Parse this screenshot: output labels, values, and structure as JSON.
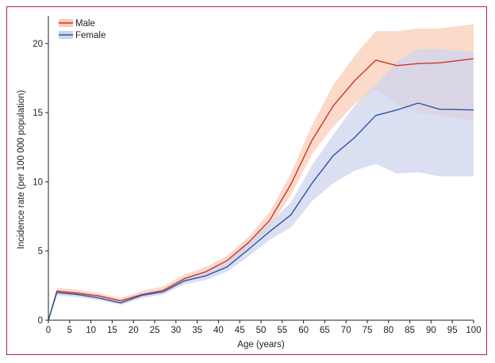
{
  "colors": {
    "male_line": "#d0332e",
    "male_band": "#f9cdb8",
    "female_line": "#2b56a4",
    "female_band": "#cfd4ee",
    "axis": "#222222",
    "frame": "#b01f5b"
  },
  "chart_data": {
    "type": "line",
    "title": "",
    "xlabel": "Age (years)",
    "ylabel": "Incidence rate (per 100 000 population)",
    "xlim": [
      0,
      100
    ],
    "ylim": [
      0,
      22
    ],
    "xticks": [
      0,
      5,
      10,
      15,
      20,
      25,
      30,
      35,
      40,
      45,
      50,
      55,
      60,
      65,
      70,
      75,
      80,
      85,
      90,
      95,
      100
    ],
    "yticks": [
      0,
      5,
      10,
      15,
      20
    ],
    "grid": false,
    "legend_position": "top-left",
    "x": [
      0,
      2,
      7,
      12,
      17,
      22,
      27,
      32,
      37,
      42,
      47,
      52,
      57,
      62,
      67,
      72,
      77,
      82,
      87,
      92,
      100
    ],
    "series": [
      {
        "name": "Male",
        "color_key": "male_line",
        "band_key": "male_band",
        "values": [
          0,
          2.1,
          1.95,
          1.75,
          1.4,
          1.85,
          2.15,
          3.0,
          3.5,
          4.3,
          5.6,
          7.2,
          9.8,
          13.0,
          15.5,
          17.3,
          18.8,
          18.4,
          18.55,
          18.6,
          18.9
        ],
        "lower": [
          0,
          1.9,
          1.75,
          1.55,
          1.2,
          1.65,
          1.95,
          2.75,
          3.2,
          4.0,
          5.2,
          6.7,
          9.0,
          12.0,
          14.0,
          15.6,
          16.7,
          15.6,
          15.0,
          14.8,
          14.4
        ],
        "upper": [
          0,
          2.35,
          2.2,
          1.95,
          1.6,
          2.1,
          2.45,
          3.3,
          3.85,
          4.65,
          6.0,
          7.8,
          10.6,
          14.1,
          17.0,
          19.1,
          20.9,
          20.9,
          21.1,
          21.1,
          21.4
        ]
      },
      {
        "name": "Female",
        "color_key": "female_line",
        "band_key": "female_band",
        "values": [
          0,
          2.0,
          1.85,
          1.6,
          1.25,
          1.8,
          2.05,
          2.85,
          3.2,
          3.85,
          5.1,
          6.4,
          7.6,
          9.9,
          11.9,
          13.2,
          14.8,
          15.2,
          15.7,
          15.25,
          15.2
        ],
        "lower": [
          0,
          1.8,
          1.65,
          1.45,
          1.1,
          1.6,
          1.85,
          2.6,
          2.9,
          3.5,
          4.6,
          5.8,
          6.7,
          8.6,
          9.9,
          10.8,
          11.3,
          10.6,
          10.7,
          10.4,
          10.4
        ],
        "upper": [
          0,
          2.2,
          2.05,
          1.8,
          1.45,
          2.0,
          2.25,
          3.1,
          3.5,
          4.2,
          5.6,
          7.0,
          8.5,
          11.2,
          13.4,
          15.5,
          17.0,
          18.7,
          19.6,
          19.6,
          19.4
        ]
      }
    ]
  }
}
